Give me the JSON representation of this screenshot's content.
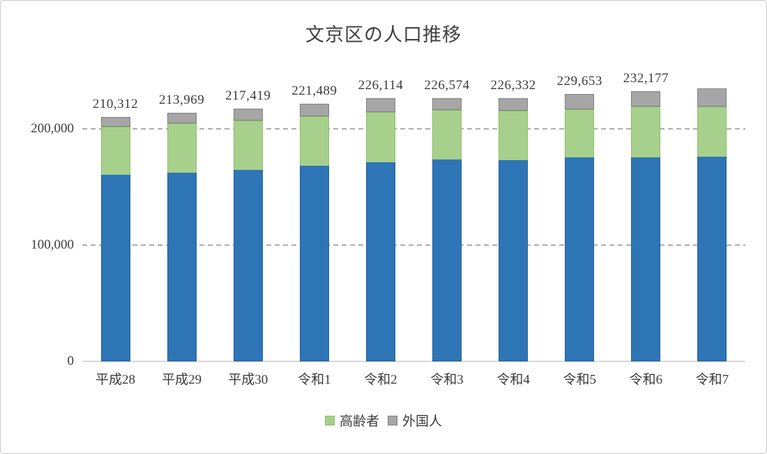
{
  "title": "文京区の人口推移",
  "legend": {
    "items": [
      {
        "label": "高齢者",
        "color": "#a8d08d",
        "border": "#8dbd6c"
      },
      {
        "label": "外国人",
        "color": "#a6a6a6",
        "border": "#7f7f7f"
      }
    ]
  },
  "colors": {
    "base_bar": "#2e75b6",
    "elderly_bar": "#a8d08d",
    "foreign_bar": "#a6a6a6",
    "gridline": "#adadad",
    "text": "#3b3b3b"
  },
  "chart_data": {
    "type": "bar",
    "stacked": true,
    "title": "文京区の人口推移",
    "categories": [
      "平成28",
      "平成29",
      "平成30",
      "令和1",
      "令和2",
      "令和3",
      "令和4",
      "令和5",
      "令和6",
      "令和7"
    ],
    "series": [
      {
        "key": "base",
        "legend_label": null,
        "color": "#2e75b6",
        "values": [
          160312,
          162469,
          164419,
          167989,
          171114,
          173574,
          173332,
          175153,
          175677,
          176000
        ]
      },
      {
        "key": "elderly",
        "legend_label": "高齢者",
        "color": "#a8d08d",
        "values": [
          41500,
          42500,
          42500,
          42500,
          43000,
          42500,
          42000,
          41500,
          43500,
          43000
        ]
      },
      {
        "key": "foreign",
        "legend_label": "外国人",
        "color": "#a6a6a6",
        "values": [
          8500,
          9000,
          10500,
          11000,
          12000,
          10500,
          11000,
          13000,
          13000,
          16000
        ]
      }
    ],
    "total_labels": [
      "210,312",
      "213,969",
      "217,419",
      "221,489",
      "226,114",
      "226,574",
      "226,332",
      "229,653",
      "232,177",
      ""
    ],
    "xlabel": "",
    "ylabel": "",
    "ylim": [
      0,
      240000
    ],
    "yticks": [
      {
        "value": 0,
        "label": "0"
      },
      {
        "value": 100000,
        "label": "100,000"
      },
      {
        "value": 200000,
        "label": "200,000"
      }
    ],
    "gridline_values": [
      100000,
      200000
    ],
    "grid": "dashed horizontal",
    "legend_position": "bottom"
  }
}
